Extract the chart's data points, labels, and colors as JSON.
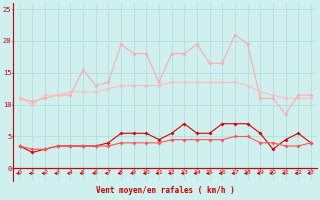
{
  "x": [
    0,
    1,
    2,
    3,
    4,
    5,
    6,
    7,
    8,
    9,
    10,
    11,
    12,
    13,
    14,
    15,
    16,
    17,
    18,
    19,
    20,
    21,
    22,
    23
  ],
  "line1": [
    11,
    10.5,
    11,
    11.5,
    11.5,
    15.5,
    13,
    13.5,
    19.5,
    18,
    18,
    13.5,
    18,
    18,
    19.5,
    16.5,
    16.5,
    21,
    19.5,
    11,
    11,
    8.5,
    11.5,
    11.5
  ],
  "line2": [
    11,
    10,
    11.5,
    11.5,
    12,
    12,
    12,
    12.5,
    13,
    13,
    13,
    13,
    13.5,
    13.5,
    13.5,
    13.5,
    13.5,
    13.5,
    13,
    12,
    11.5,
    11,
    11,
    11
  ],
  "line3": [
    3.5,
    2.5,
    3,
    3.5,
    3.5,
    3.5,
    3.5,
    4,
    5.5,
    5.5,
    5.5,
    4.5,
    5.5,
    7,
    5.5,
    5.5,
    7,
    7,
    7,
    5.5,
    3,
    4.5,
    5.5,
    4
  ],
  "line4": [
    3.5,
    3,
    3,
    3.5,
    3.5,
    3.5,
    3.5,
    3.5,
    4,
    4,
    4,
    4,
    4.5,
    4.5,
    4.5,
    4.5,
    4.5,
    5,
    5,
    4,
    4,
    3.5,
    3.5,
    4
  ],
  "line5": [
    -0.8,
    -0.8,
    -0.8,
    -0.8,
    -0.8,
    -0.8,
    -0.8,
    -0.8,
    -0.8,
    -0.8,
    -0.8,
    -0.8,
    -0.8,
    -0.8,
    -0.8,
    -0.8,
    -0.8,
    -0.8,
    -0.8,
    -0.8,
    -0.8,
    -0.8,
    -0.8,
    -0.8
  ],
  "color_line1": "#ffaaaa",
  "color_line2": "#ffbbbb",
  "color_line3": "#dd0000",
  "color_line4": "#ff5555",
  "color_line5": "#cc0000",
  "bg_color": "#d0f0f0",
  "grid_color": "#b0d8d8",
  "axis_color": "#cc0000",
  "text_color": "#cc0000",
  "xlabel": "Vent moyen/en rafales ( km/h )",
  "ylim": [
    -2,
    26
  ],
  "xlim": [
    -0.5,
    23.5
  ],
  "yticks": [
    0,
    5,
    10,
    15,
    20,
    25
  ],
  "xticks": [
    0,
    1,
    2,
    3,
    4,
    5,
    6,
    7,
    8,
    9,
    10,
    11,
    12,
    13,
    14,
    15,
    16,
    17,
    18,
    19,
    20,
    21,
    22,
    23
  ]
}
